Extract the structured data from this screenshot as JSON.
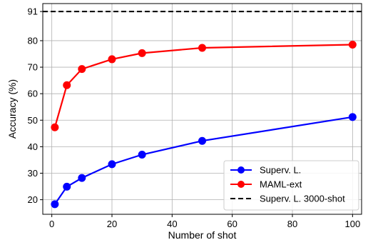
{
  "chart_data": {
    "type": "line",
    "xlabel": "Number of shot",
    "ylabel": "Accuracy (%)",
    "xlim": [
      -3,
      103
    ],
    "ylim": [
      14.5,
      94
    ],
    "x_ticks": [
      0,
      20,
      40,
      60,
      80,
      100
    ],
    "y_ticks": [
      20,
      30,
      40,
      50,
      60,
      70,
      80,
      91
    ],
    "grid": true,
    "legend_position": "lower-right",
    "series": [
      {
        "name": "Superv. L.",
        "color": "#0000ff",
        "style": "solid",
        "marker": "circle",
        "x": [
          1,
          5,
          10,
          20,
          30,
          50,
          100
        ],
        "y": [
          18.3,
          24.9,
          28.2,
          33.4,
          37.0,
          42.2,
          51.2
        ]
      },
      {
        "name": "MAML-ext",
        "color": "#ff0000",
        "style": "solid",
        "marker": "circle",
        "x": [
          1,
          5,
          10,
          20,
          30,
          50,
          100
        ],
        "y": [
          47.3,
          63.2,
          69.3,
          73.0,
          75.3,
          77.3,
          78.5
        ]
      },
      {
        "name": "Superv. L. 3000-shot",
        "color": "#000000",
        "style": "dashed",
        "marker": "none",
        "x": [
          -3,
          103
        ],
        "y": [
          91,
          91
        ]
      }
    ]
  }
}
